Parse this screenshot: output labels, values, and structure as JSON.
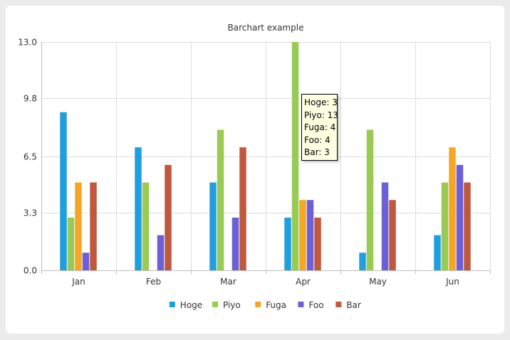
{
  "chart_data": {
    "type": "bar",
    "title": "Barchart example",
    "xlabel": "",
    "ylabel": "",
    "ylim": [
      0,
      13
    ],
    "yticks": [
      "0.0",
      "3.3",
      "6.5",
      "9.8",
      "13.0"
    ],
    "grid": true,
    "legend_position": "bottom",
    "categories": [
      "Jan",
      "Feb",
      "Mar",
      "Apr",
      "May",
      "Jun"
    ],
    "series": [
      {
        "name": "Hoge",
        "color": "#209fdf",
        "values": [
          9,
          7,
          5,
          3,
          1,
          2
        ]
      },
      {
        "name": "Piyo",
        "color": "#99ca53",
        "values": [
          3,
          5,
          8,
          13,
          8,
          5
        ]
      },
      {
        "name": "Fuga",
        "color": "#f6a625",
        "values": [
          5,
          0,
          0,
          4,
          0,
          7
        ]
      },
      {
        "name": "Foo",
        "color": "#6d5fd5",
        "values": [
          1,
          2,
          3,
          4,
          5,
          6
        ]
      },
      {
        "name": "Bar",
        "color": "#bf593e",
        "values": [
          5,
          6,
          7,
          3,
          4,
          5
        ]
      }
    ]
  },
  "tooltip": {
    "lines": [
      "Hoge: 3",
      "Piyo: 13",
      "Fuga: 4",
      "Foo: 4",
      "Bar: 3"
    ]
  }
}
